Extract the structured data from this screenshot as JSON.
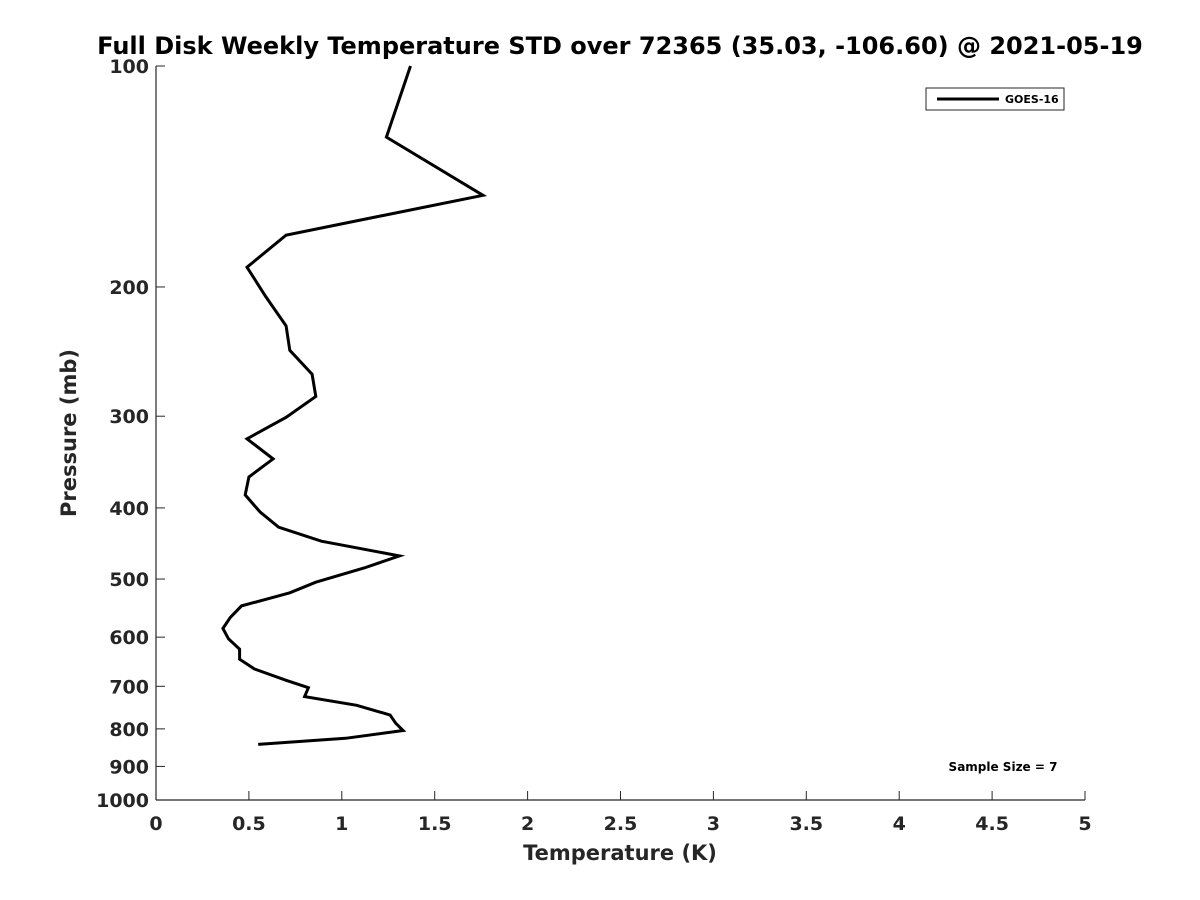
{
  "chart_data": {
    "type": "line",
    "title": "Full Disk Weekly Temperature STD over 72365 (35.03, -106.60) @ 2021-05-19",
    "xlabel": "Temperature (K)",
    "ylabel": "Pressure (mb)",
    "xlim": [
      0,
      5
    ],
    "ylim": [
      100,
      1000
    ],
    "yscale": "log",
    "yreversed": true,
    "x_ticks": [
      0,
      0.5,
      1,
      1.5,
      2,
      2.5,
      3,
      3.5,
      4,
      4.5,
      5
    ],
    "x_tick_labels": [
      "0",
      "0.5",
      "1",
      "1.5",
      "2",
      "2.5",
      "3",
      "3.5",
      "4",
      "4.5",
      "5"
    ],
    "y_ticks": [
      100,
      200,
      300,
      400,
      500,
      600,
      700,
      800,
      900,
      1000
    ],
    "y_tick_labels": [
      "100",
      "200",
      "300",
      "400",
      "500",
      "600",
      "700",
      "800",
      "900",
      "1000"
    ],
    "grid": false,
    "legend_position": "top-right",
    "annotation": "Sample Size = 7",
    "series": [
      {
        "name": "GOES-16",
        "color": "#000000",
        "points": [
          {
            "x": 1.37,
            "y": 100
          },
          {
            "x": 1.24,
            "y": 125
          },
          {
            "x": 1.76,
            "y": 150
          },
          {
            "x": 0.7,
            "y": 170
          },
          {
            "x": 0.49,
            "y": 188
          },
          {
            "x": 0.59,
            "y": 206
          },
          {
            "x": 0.7,
            "y": 226
          },
          {
            "x": 0.72,
            "y": 244
          },
          {
            "x": 0.84,
            "y": 263
          },
          {
            "x": 0.86,
            "y": 282
          },
          {
            "x": 0.7,
            "y": 301
          },
          {
            "x": 0.49,
            "y": 322
          },
          {
            "x": 0.63,
            "y": 343
          },
          {
            "x": 0.5,
            "y": 363
          },
          {
            "x": 0.48,
            "y": 384
          },
          {
            "x": 0.56,
            "y": 405
          },
          {
            "x": 0.66,
            "y": 425
          },
          {
            "x": 0.89,
            "y": 444
          },
          {
            "x": 1.31,
            "y": 465
          },
          {
            "x": 1.12,
            "y": 483
          },
          {
            "x": 0.86,
            "y": 505
          },
          {
            "x": 0.72,
            "y": 522
          },
          {
            "x": 0.46,
            "y": 544
          },
          {
            "x": 0.4,
            "y": 564
          },
          {
            "x": 0.36,
            "y": 584
          },
          {
            "x": 0.39,
            "y": 603
          },
          {
            "x": 0.45,
            "y": 623
          },
          {
            "x": 0.45,
            "y": 643
          },
          {
            "x": 0.53,
            "y": 663
          },
          {
            "x": 0.7,
            "y": 687
          },
          {
            "x": 0.82,
            "y": 703
          },
          {
            "x": 0.8,
            "y": 723
          },
          {
            "x": 1.08,
            "y": 743
          },
          {
            "x": 1.26,
            "y": 766
          },
          {
            "x": 1.29,
            "y": 786
          },
          {
            "x": 1.33,
            "y": 804
          },
          {
            "x": 1.02,
            "y": 824
          },
          {
            "x": 0.55,
            "y": 840
          }
        ]
      }
    ]
  }
}
